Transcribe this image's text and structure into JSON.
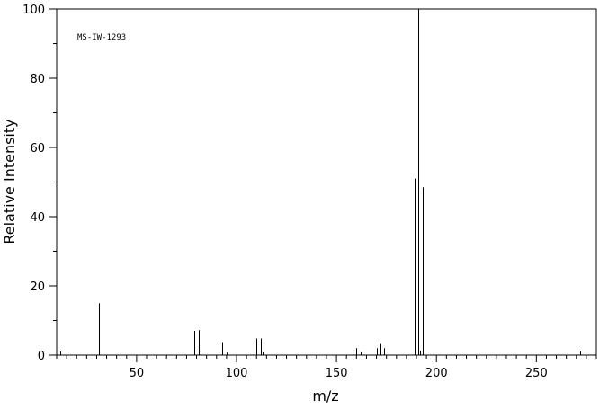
{
  "chart_data": {
    "type": "bar",
    "title": "",
    "annotation": "MS-IW-1293",
    "xlabel": "m/z",
    "ylabel": "Relative Intensity",
    "xlim": [
      10,
      280
    ],
    "ylim": [
      0,
      100
    ],
    "x_ticks": [
      50,
      100,
      150,
      200,
      250
    ],
    "y_ticks": [
      0,
      20,
      40,
      60,
      80,
      100
    ],
    "grid": false,
    "series": [
      {
        "x": [
          12,
          31,
          79,
          81,
          82,
          91,
          93,
          95,
          110,
          112,
          113,
          158,
          160,
          162,
          170,
          172,
          174,
          189,
          191,
          192,
          193,
          270,
          272
        ],
        "values": [
          1,
          15,
          7,
          7.2,
          1,
          4,
          3.5,
          0.7,
          4.8,
          4.8,
          0.8,
          1,
          2,
          0.8,
          2,
          3.2,
          2,
          51,
          100,
          1.2,
          48.5,
          1,
          1
        ]
      }
    ]
  }
}
